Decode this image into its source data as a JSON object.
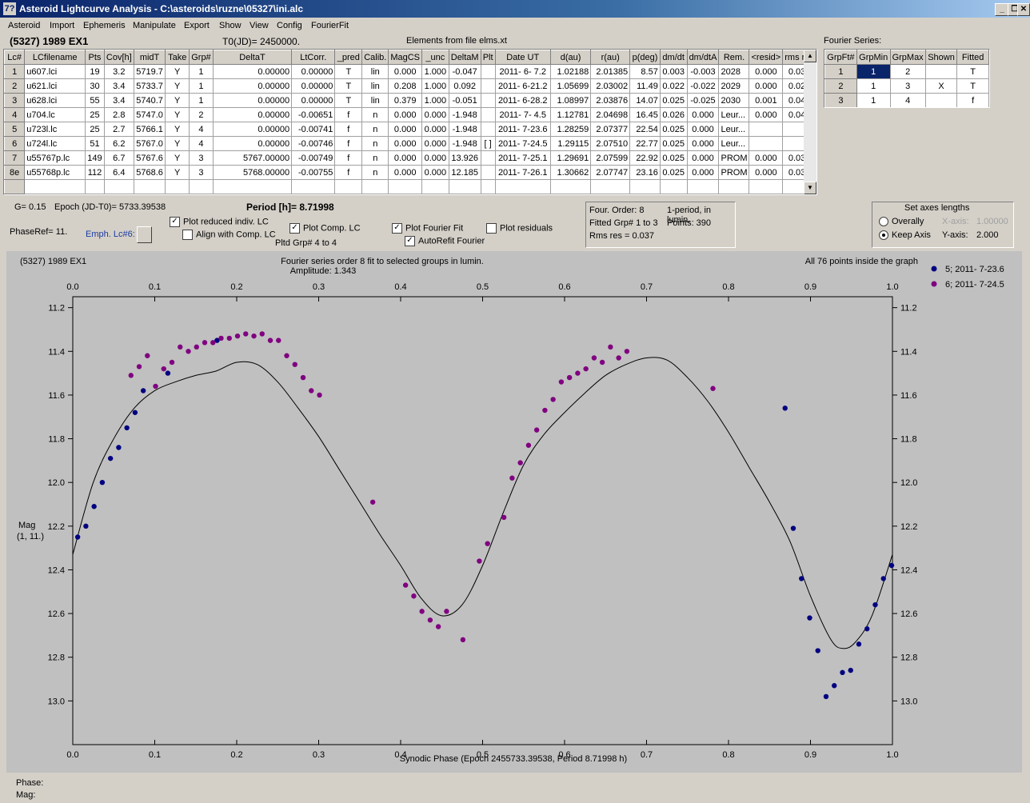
{
  "window": {
    "title": "Asteroid Lightcurve Analysis - C:\\asteroids\\ruzne\\05327\\ini.alc",
    "app_icon": "7?",
    "btn_minimize": "_",
    "btn_restore": "❐",
    "btn_close": "✕"
  },
  "menu": [
    "Asteroid",
    "Import",
    "Ephemeris",
    "Manipulate",
    "Export",
    "Show",
    "View",
    "Config",
    "FourierFit"
  ],
  "header": {
    "asteroid": "(5327) 1989 EX1",
    "t0": "T0(JD)= 2450000.",
    "elements": "Elements from file elms.xt",
    "fourier_label": "Fourier Series:"
  },
  "lc_table": {
    "columns": [
      "Lc#",
      "LCfilename",
      "Pts",
      "Cov[h]",
      "midT",
      "Take",
      "Grp#",
      "DeltaT",
      "LtCorr.",
      "_pred",
      "Calib.",
      "MagCS",
      "_unc",
      "DeltaM",
      "Plt",
      "Date UT",
      "d(au)",
      "r(au)",
      "p(deg)",
      "dm/dt",
      "dm/dtA",
      "Rem.",
      "<resid>",
      "rms res"
    ],
    "rows": [
      [
        "1",
        "u607.lci",
        "19",
        "3.2",
        "5719.7",
        "Y",
        "1",
        "0.00000",
        "0.00000",
        "T",
        "lin",
        "0.000",
        "1.000",
        "-0.047",
        "",
        "2011- 6- 7.2",
        "1.02188",
        "2.01385",
        "8.57",
        "0.003",
        "-0.003",
        "2028",
        "0.000",
        "0.033"
      ],
      [
        "2",
        "u621.lci",
        "30",
        "3.4",
        "5733.7",
        "Y",
        "1",
        "0.00000",
        "0.00000",
        "T",
        "lin",
        "0.208",
        "1.000",
        "0.092",
        "",
        "2011- 6-21.2",
        "1.05699",
        "2.03002",
        "11.49",
        "0.022",
        "-0.022",
        "2029",
        "0.000",
        "0.027"
      ],
      [
        "3",
        "u628.lci",
        "55",
        "3.4",
        "5740.7",
        "Y",
        "1",
        "0.00000",
        "0.00000",
        "T",
        "lin",
        "0.379",
        "1.000",
        "-0.051",
        "",
        "2011- 6-28.2",
        "1.08997",
        "2.03876",
        "14.07",
        "0.025",
        "-0.025",
        "2030",
        "0.001",
        "0.043"
      ],
      [
        "4",
        "u704.lc",
        "25",
        "2.8",
        "5747.0",
        "Y",
        "2",
        "0.00000",
        "-0.00651",
        "f",
        "n",
        "0.000",
        "0.000",
        "-1.948",
        "",
        "2011- 7- 4.5",
        "1.12781",
        "2.04698",
        "16.45",
        "0.026",
        "0.000",
        "Leur...",
        "0.000",
        "0.040"
      ],
      [
        "5",
        "u723l.lc",
        "25",
        "2.7",
        "5766.1",
        "Y",
        "4",
        "0.00000",
        "-0.00741",
        "f",
        "n",
        "0.000",
        "0.000",
        "-1.948",
        "",
        "2011- 7-23.6",
        "1.28259",
        "2.07377",
        "22.54",
        "0.025",
        "0.000",
        "Leur...",
        "",
        ""
      ],
      [
        "6",
        "u724l.lc",
        "51",
        "6.2",
        "5767.0",
        "Y",
        "4",
        "0.00000",
        "-0.00746",
        "f",
        "n",
        "0.000",
        "0.000",
        "-1.948",
        "[ ]",
        "2011- 7-24.5",
        "1.29115",
        "2.07510",
        "22.77",
        "0.025",
        "0.000",
        "Leur...",
        "",
        ""
      ],
      [
        "7",
        "u55767p.lc",
        "149",
        "6.7",
        "5767.6",
        "Y",
        "3",
        "5767.00000",
        "-0.00749",
        "f",
        "n",
        "0.000",
        "0.000",
        "13.926",
        "",
        "2011- 7-25.1",
        "1.29691",
        "2.07599",
        "22.92",
        "0.025",
        "0.000",
        "PROM",
        "0.000",
        "0.035"
      ],
      [
        "8e",
        "u55768p.lc",
        "112",
        "6.4",
        "5768.6",
        "Y",
        "3",
        "5768.00000",
        "-0.00755",
        "f",
        "n",
        "0.000",
        "0.000",
        "12.185",
        "",
        "2011- 7-26.1",
        "1.30662",
        "2.07747",
        "23.16",
        "0.025",
        "0.000",
        "PROM",
        "0.000",
        "0.036"
      ],
      [
        "",
        "",
        "",
        "",
        "",
        "",
        "",
        "",
        "",
        "",
        "",
        "",
        "",
        "",
        "",
        "",
        "",
        "",
        "",
        "",
        "",
        "",
        "",
        ""
      ]
    ]
  },
  "fourier_table": {
    "columns": [
      "GrpFt#",
      "GrpMin",
      "GrpMax",
      "Shown",
      "Fitted"
    ],
    "rows": [
      [
        "1",
        "1",
        "2",
        "",
        "T"
      ],
      [
        "2",
        "1",
        "3",
        "X",
        "T"
      ],
      [
        "3",
        "1",
        "4",
        "",
        "f"
      ]
    ]
  },
  "controls": {
    "g": "G= 0.15",
    "epoch": "Epoch (JD-T0)= 5733.39538",
    "period": "Period [h]= 8.71998",
    "phaseref": "PhaseRef= 11.",
    "emph": "Emph. Lc#6:",
    "plot_reduced": "Plot reduced indiv. LC",
    "align": "Align with Comp. LC",
    "plot_comp": "Plot Comp. LC",
    "pltd_grp": "Pltd Grp#  4  to   4",
    "plot_fourier": "Plot Fourier Fit",
    "autorefit": "AutoRefit Fourier",
    "plot_resid": "Plot residuals",
    "check_on": "✓"
  },
  "fit_info": {
    "order": "Four. Order:  8",
    "mode": "1-period, in lumin.",
    "fitted": "Fitted Grp# 1 to 3",
    "points": "Points: 390",
    "rms": "Rms res      = 0.037"
  },
  "axes_box": {
    "title": "Set axes lengths",
    "overally": "Overally",
    "keep": "Keep Axis",
    "xaxis_label": "X-axis:",
    "xaxis_value": "1.00000",
    "yaxis_label": "Y-axis:",
    "yaxis_value": "2.000"
  },
  "status": {
    "phase": "Phase:",
    "mag": "Mag:"
  },
  "chart_data": {
    "type": "scatter",
    "name_label": "(5327) 1989 EX1",
    "title": "Fourier series order 8 fit to selected groups in lumin.",
    "subtitle": "Amplitude: 1.343",
    "note": "All 76 points inside the graph",
    "xlabel": "Synodic Phase (Epoch 2455733.39538, Period 8.71998 h)",
    "ylabel": "Mag",
    "ylabel2": "(1, 11.)",
    "xlim": [
      0,
      1
    ],
    "ylim": [
      13.2,
      11.15
    ],
    "xticks": [
      "0.0",
      "0.1",
      "0.2",
      "0.3",
      "0.4",
      "0.5",
      "0.6",
      "0.7",
      "0.8",
      "0.9",
      "1.0"
    ],
    "yticks": [
      "11.2",
      "11.4",
      "11.6",
      "11.8",
      "12.0",
      "12.2",
      "12.4",
      "12.6",
      "12.8",
      "13.0"
    ],
    "colors": {
      "s1": "#000080",
      "s2": "#800080",
      "fit": "#000000",
      "plot_bg": "#c0c0c0"
    },
    "series": [
      {
        "name": "5; 2011- 7-23.6",
        "color": "#000080",
        "points": [
          [
            0.006,
            12.25
          ],
          [
            0.016,
            12.2
          ],
          [
            0.026,
            12.11
          ],
          [
            0.036,
            12.0
          ],
          [
            0.046,
            11.89
          ],
          [
            0.056,
            11.84
          ],
          [
            0.066,
            11.75
          ],
          [
            0.076,
            11.68
          ],
          [
            0.086,
            11.58
          ],
          [
            0.116,
            11.5
          ],
          [
            0.176,
            11.35
          ],
          [
            0.869,
            11.66
          ],
          [
            0.879,
            12.21
          ],
          [
            0.889,
            12.44
          ],
          [
            0.899,
            12.62
          ],
          [
            0.909,
            12.77
          ],
          [
            0.919,
            12.98
          ],
          [
            0.929,
            12.93
          ],
          [
            0.939,
            12.87
          ],
          [
            0.949,
            12.86
          ],
          [
            0.959,
            12.74
          ],
          [
            0.969,
            12.67
          ],
          [
            0.979,
            12.56
          ],
          [
            0.989,
            12.44
          ],
          [
            0.999,
            12.38
          ]
        ]
      },
      {
        "name": "6; 2011- 7-24.5",
        "color": "#800080",
        "points": [
          [
            0.071,
            11.51
          ],
          [
            0.081,
            11.47
          ],
          [
            0.091,
            11.42
          ],
          [
            0.101,
            11.56
          ],
          [
            0.111,
            11.48
          ],
          [
            0.121,
            11.45
          ],
          [
            0.131,
            11.38
          ],
          [
            0.141,
            11.4
          ],
          [
            0.151,
            11.38
          ],
          [
            0.161,
            11.36
          ],
          [
            0.171,
            11.36
          ],
          [
            0.181,
            11.34
          ],
          [
            0.191,
            11.34
          ],
          [
            0.201,
            11.33
          ],
          [
            0.211,
            11.32
          ],
          [
            0.221,
            11.33
          ],
          [
            0.231,
            11.32
          ],
          [
            0.241,
            11.35
          ],
          [
            0.251,
            11.35
          ],
          [
            0.261,
            11.42
          ],
          [
            0.271,
            11.46
          ],
          [
            0.281,
            11.52
          ],
          [
            0.291,
            11.58
          ],
          [
            0.301,
            11.6
          ],
          [
            0.366,
            12.09
          ],
          [
            0.406,
            12.47
          ],
          [
            0.416,
            12.52
          ],
          [
            0.426,
            12.59
          ],
          [
            0.436,
            12.63
          ],
          [
            0.446,
            12.66
          ],
          [
            0.456,
            12.59
          ],
          [
            0.476,
            12.72
          ],
          [
            0.496,
            12.36
          ],
          [
            0.506,
            12.28
          ],
          [
            0.526,
            12.16
          ],
          [
            0.536,
            11.98
          ],
          [
            0.546,
            11.91
          ],
          [
            0.556,
            11.83
          ],
          [
            0.566,
            11.76
          ],
          [
            0.576,
            11.67
          ],
          [
            0.586,
            11.62
          ],
          [
            0.596,
            11.54
          ],
          [
            0.606,
            11.52
          ],
          [
            0.616,
            11.5
          ],
          [
            0.626,
            11.48
          ],
          [
            0.636,
            11.43
          ],
          [
            0.646,
            11.45
          ],
          [
            0.656,
            11.38
          ],
          [
            0.666,
            11.43
          ],
          [
            0.676,
            11.4
          ],
          [
            0.781,
            11.57
          ]
        ]
      }
    ],
    "fit_curve": [
      [
        0,
        12.33
      ],
      [
        0.025,
        12.0
      ],
      [
        0.05,
        11.8
      ],
      [
        0.075,
        11.66
      ],
      [
        0.1,
        11.58
      ],
      [
        0.125,
        11.54
      ],
      [
        0.15,
        11.51
      ],
      [
        0.175,
        11.49
      ],
      [
        0.2,
        11.45
      ],
      [
        0.225,
        11.46
      ],
      [
        0.25,
        11.54
      ],
      [
        0.275,
        11.66
      ],
      [
        0.3,
        11.79
      ],
      [
        0.325,
        11.94
      ],
      [
        0.35,
        12.09
      ],
      [
        0.375,
        12.24
      ],
      [
        0.4,
        12.38
      ],
      [
        0.425,
        12.53
      ],
      [
        0.45,
        12.61
      ],
      [
        0.475,
        12.56
      ],
      [
        0.5,
        12.38
      ],
      [
        0.525,
        12.14
      ],
      [
        0.55,
        11.92
      ],
      [
        0.575,
        11.78
      ],
      [
        0.6,
        11.68
      ],
      [
        0.625,
        11.59
      ],
      [
        0.65,
        11.51
      ],
      [
        0.675,
        11.46
      ],
      [
        0.7,
        11.43
      ],
      [
        0.725,
        11.44
      ],
      [
        0.75,
        11.52
      ],
      [
        0.775,
        11.63
      ],
      [
        0.8,
        11.77
      ],
      [
        0.825,
        11.93
      ],
      [
        0.85,
        12.09
      ],
      [
        0.875,
        12.27
      ],
      [
        0.9,
        12.52
      ],
      [
        0.925,
        12.72
      ],
      [
        0.94,
        12.76
      ],
      [
        0.955,
        12.73
      ],
      [
        0.975,
        12.61
      ],
      [
        1.0,
        12.33
      ]
    ]
  }
}
